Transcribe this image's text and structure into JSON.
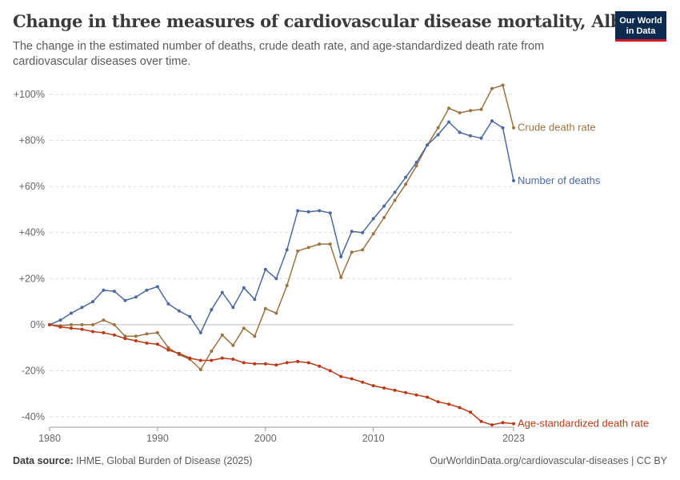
{
  "header": {
    "title": "Change in three measures of cardiovascular disease mortality, Albania",
    "subtitle": "The change in the estimated number of deaths, crude death rate, and age-standardized death rate from cardiovascular diseases over time.",
    "logo_line1": "Our World",
    "logo_line2": "in Data"
  },
  "footer": {
    "source_label": "Data source:",
    "source_text": "IHME, Global Burden of Disease (2025)",
    "url_text": "OurWorldinData.org/cardiovascular-diseases | CC BY"
  },
  "colors": {
    "number_of_deaths": "#4c6a9c",
    "crude_death_rate": "#9a7442",
    "age_standardized": "#b83a16",
    "grid": "#dddddd",
    "zero_line": "#bdbdbd",
    "tick_text": "#666666"
  },
  "chart_data": {
    "type": "line",
    "x": [
      1980,
      1981,
      1982,
      1983,
      1984,
      1985,
      1986,
      1987,
      1988,
      1989,
      1990,
      1991,
      1992,
      1993,
      1994,
      1995,
      1996,
      1997,
      1998,
      1999,
      2000,
      2001,
      2002,
      2003,
      2004,
      2005,
      2006,
      2007,
      2008,
      2009,
      2010,
      2011,
      2012,
      2013,
      2014,
      2015,
      2016,
      2017,
      2018,
      2019,
      2020,
      2021,
      2022,
      2023
    ],
    "xlim": [
      1980,
      2023
    ],
    "x_ticks": [
      1980,
      1990,
      2000,
      2010,
      2023
    ],
    "ylim": [
      -42,
      106
    ],
    "y_ticks": [
      100,
      80,
      60,
      40,
      20,
      0,
      -20,
      -40
    ],
    "y_tick_labels": [
      "+100%",
      "+80%",
      "+60%",
      "+40%",
      "+20%",
      "0%",
      "-20%",
      "-40%"
    ],
    "grid": true,
    "legend": "line-end labels",
    "series": [
      {
        "name": "Crude death rate",
        "color_key": "crude_death_rate",
        "values": [
          0,
          -0.5,
          0,
          0,
          0,
          2,
          0,
          -5,
          -5,
          -4,
          -3.5,
          -10,
          -13,
          -15,
          -19.5,
          -11.5,
          -4.5,
          -9,
          -1.5,
          -5,
          7,
          5,
          17,
          32,
          33.5,
          35,
          35,
          20.5,
          31.5,
          32.5,
          39.5,
          46.5,
          54,
          61,
          69,
          78,
          85.5,
          94,
          92,
          93,
          93.5,
          102.5,
          104,
          85.5
        ]
      },
      {
        "name": "Number of deaths",
        "color_key": "number_of_deaths",
        "values": [
          0,
          2,
          5,
          7.5,
          10,
          15,
          14.5,
          10.5,
          12,
          15,
          16.5,
          9,
          6,
          3.5,
          -3.5,
          6.5,
          14,
          7.5,
          16,
          11,
          24,
          20,
          32.5,
          49.5,
          49,
          49.5,
          48.5,
          29.5,
          40.5,
          40,
          46,
          51.5,
          57.5,
          64,
          70.5,
          78,
          82.5,
          88,
          83.5,
          82,
          81,
          88.5,
          85.5,
          62.5
        ]
      },
      {
        "name": "Age-standardized death rate",
        "color_key": "age_standardized",
        "values": [
          0,
          -1,
          -1.5,
          -2,
          -3,
          -3.5,
          -4.5,
          -6,
          -7,
          -8,
          -8.5,
          -11,
          -12.5,
          -14.5,
          -15.5,
          -15.5,
          -14.5,
          -15,
          -16.5,
          -17,
          -17,
          -17.5,
          -16.5,
          -16,
          -16.5,
          -18,
          -20,
          -22.5,
          -23.5,
          -25,
          -26.5,
          -27.5,
          -28.5,
          -29.5,
          -30.5,
          -31.5,
          -33.5,
          -34.5,
          -36,
          -38,
          -42,
          -43.5,
          -42.5,
          -43
        ]
      }
    ]
  }
}
